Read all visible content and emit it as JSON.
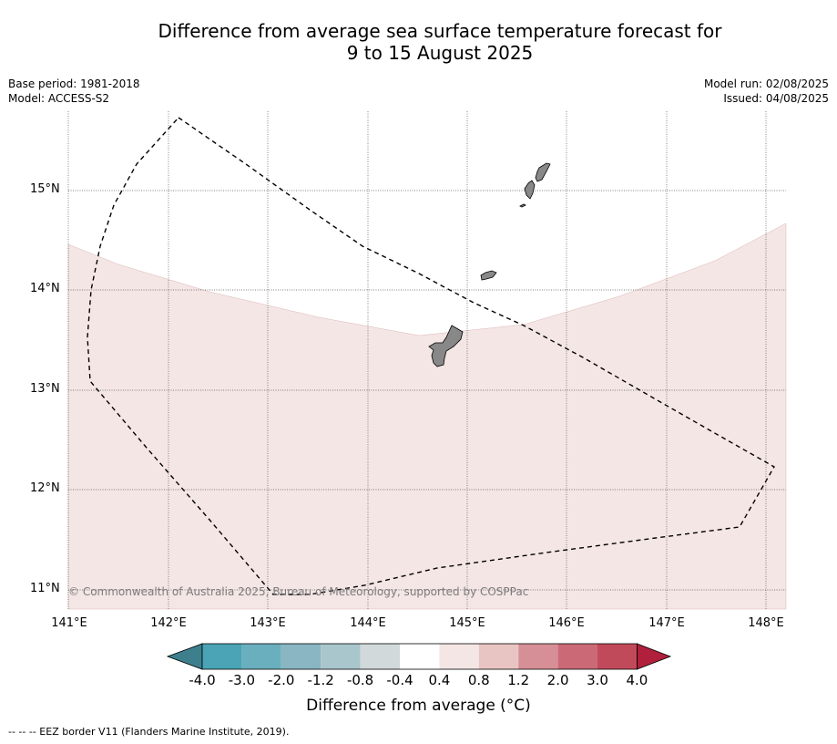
{
  "title_line1": "Difference from average sea surface temperature forecast for",
  "title_line2": "9 to 15 August 2025",
  "meta_left": {
    "base_period": "Base period: 1981-2018",
    "model": "Model: ACCESS-S2"
  },
  "meta_right": {
    "model_run": "Model run: 02/08/2025",
    "issued": "Issued: 04/08/2025"
  },
  "latitudes": [
    "15°N",
    "14°N",
    "13°N",
    "12°N",
    "11°N"
  ],
  "longitudes": [
    "141°E",
    "142°E",
    "143°E",
    "144°E",
    "145°E",
    "146°E",
    "147°E",
    "148°E"
  ],
  "copyright": "© Commonwealth of Australia 2025, Bureau of Meteorology, supported by COSPPac",
  "colorbar": {
    "ticks": [
      "-4.0",
      "-3.0",
      "-2.0",
      "-1.2",
      "-0.8",
      "-0.4",
      "0.4",
      "0.8",
      "1.2",
      "2.0",
      "3.0",
      "4.0"
    ],
    "colors": [
      "#4aa4b5",
      "#6aafbd",
      "#89b6c2",
      "#a8c6cb",
      "#d2d9da",
      "#ffffff",
      "#f4e6e5",
      "#e8c5c3",
      "#d68f96",
      "#cb6a76",
      "#c14a5a"
    ],
    "under_color": "#3d7f8d",
    "over_color": "#b0203c",
    "label": "Difference from average (°C)"
  },
  "map_fill_color": "#f4e6e5",
  "land_color": "#888888",
  "footnote": "--  --  -- EEZ border V11 (Flanders Marine Institute, 2019)."
}
